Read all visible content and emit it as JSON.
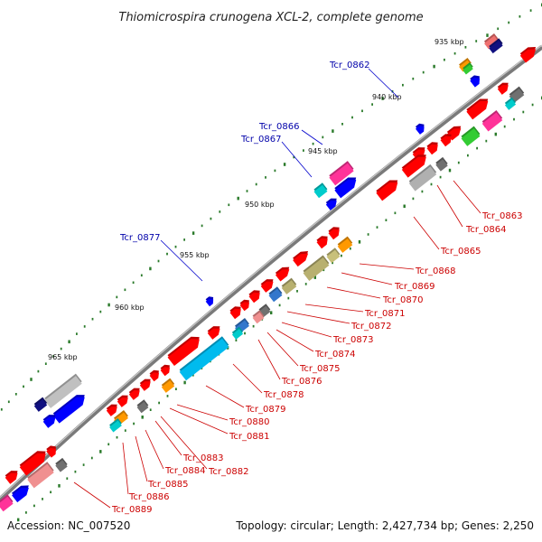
{
  "title": "Thiomicrospira crunogena XCL-2, complete genome",
  "footer": {
    "accession": "Accession: NC_007520",
    "summary": "Topology: circular; Length: 2,427,734 bp; Genes: 2,250"
  },
  "kbp_labels": [
    "935 kbp",
    "940 kbp",
    "945 kbp",
    "950 kbp",
    "955 kbp",
    "960 kbp",
    "965 kbp"
  ],
  "gene_labels_red": [
    "Tcr_0863",
    "Tcr_0864",
    "Tcr_0865",
    "Tcr_0868",
    "Tcr_0869",
    "Tcr_0870",
    "Tcr_0871",
    "Tcr_0872",
    "Tcr_0873",
    "Tcr_0874",
    "Tcr_0875",
    "Tcr_0876",
    "Tcr_0878",
    "Tcr_0879",
    "Tcr_0880",
    "Tcr_0881",
    "Tcr_0882",
    "Tcr_0883",
    "Tcr_0884",
    "Tcr_0885",
    "Tcr_0886",
    "Tcr_0889"
  ],
  "gene_labels_blue": [
    "Tcr_0862",
    "Tcr_0866",
    "Tcr_0867",
    "Tcr_0877"
  ],
  "colors": {
    "red_label": "#cc0000",
    "blue_label": "#0000aa",
    "backbone": "#808080",
    "tick": "#2a7a2a"
  }
}
